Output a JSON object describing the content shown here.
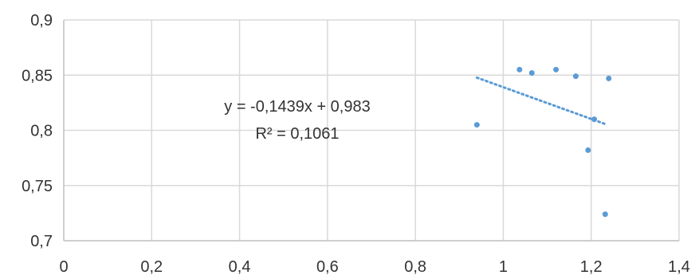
{
  "chart_data": {
    "type": "scatter",
    "title": "",
    "xlabel": "",
    "ylabel": "",
    "xlim": [
      0,
      1.4
    ],
    "ylim": [
      0.7,
      0.9
    ],
    "x_ticks": [
      0,
      0.2,
      0.4,
      0.6,
      0.8,
      1,
      1.2,
      1.4
    ],
    "x_tick_labels": [
      "0",
      "0,2",
      "0,4",
      "0,6",
      "0,8",
      "1",
      "1,2",
      "1,4"
    ],
    "y_ticks": [
      0.7,
      0.75,
      0.8,
      0.85,
      0.9
    ],
    "y_tick_labels": [
      "0,7",
      "0,75",
      "0,8",
      "0,85",
      "0,9"
    ],
    "grid": true,
    "legend": "none",
    "marker_color": "#5b9bd5",
    "series": [
      {
        "points": [
          {
            "x": 0.94,
            "y": 0.805
          },
          {
            "x": 1.037,
            "y": 0.855
          },
          {
            "x": 1.065,
            "y": 0.852
          },
          {
            "x": 1.12,
            "y": 0.855
          },
          {
            "x": 1.165,
            "y": 0.849
          },
          {
            "x": 1.193,
            "y": 0.782
          },
          {
            "x": 1.207,
            "y": 0.81
          },
          {
            "x": 1.232,
            "y": 0.724
          },
          {
            "x": 1.24,
            "y": 0.847
          }
        ]
      }
    ],
    "trendline": {
      "type": "linear",
      "slope": -0.1439,
      "intercept": 0.983,
      "x_start": 0.94,
      "x_end": 1.232,
      "style": "dotted",
      "color": "#5b9bd5"
    },
    "annotations": {
      "equation": "y = -0,1439x + 0,983",
      "r_squared": "R² = 0,1061"
    }
  }
}
